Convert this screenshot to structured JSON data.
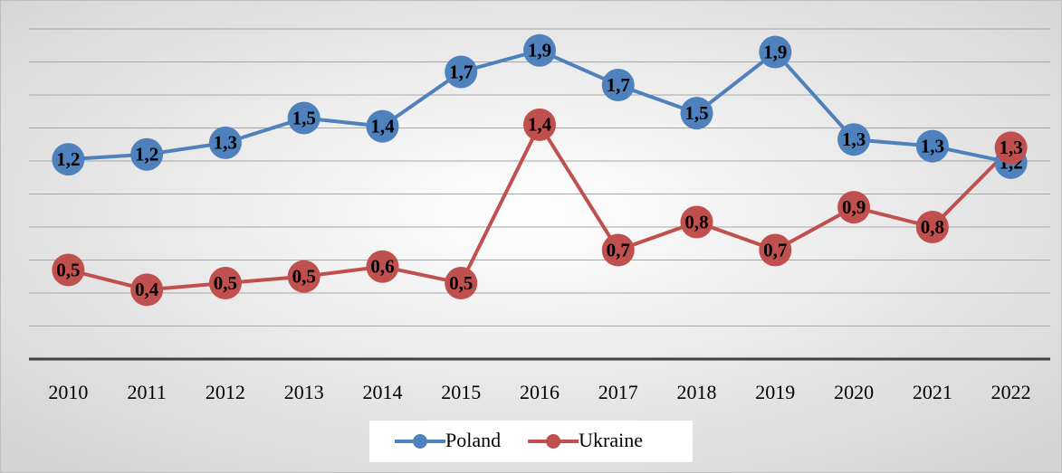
{
  "chart_data": {
    "type": "line",
    "categories": [
      "2010",
      "2011",
      "2012",
      "2013",
      "2014",
      "2015",
      "2016",
      "2017",
      "2018",
      "2019",
      "2020",
      "2021",
      "2022"
    ],
    "series": [
      {
        "name": "Poland",
        "color": "#4f81bd",
        "values": [
          1.21,
          1.24,
          1.31,
          1.46,
          1.41,
          1.74,
          1.87,
          1.66,
          1.49,
          1.86,
          1.33,
          1.29,
          1.19
        ],
        "value_labels": [
          "1,2",
          "1,2",
          "1,3",
          "1,5",
          "1,4",
          "1,7",
          "1,9",
          "1,7",
          "1,5",
          "1,9",
          "1,3",
          "1,3",
          "1,2"
        ]
      },
      {
        "name": "Ukraine",
        "color": "#c0504d",
        "values": [
          0.54,
          0.42,
          0.46,
          0.5,
          0.56,
          0.46,
          1.42,
          0.66,
          0.83,
          0.66,
          0.92,
          0.8,
          1.28
        ],
        "value_labels": [
          "0,5",
          "0,4",
          "0,5",
          "0,5",
          "0,6",
          "0,5",
          "1,4",
          "0,7",
          "0,8",
          "0,7",
          "0,9",
          "0,8",
          "1,3"
        ]
      }
    ],
    "ylim": [
      0,
      2
    ],
    "yticks": [
      0,
      0.2,
      0.4,
      0.6,
      0.8,
      1,
      1.2,
      1.4,
      1.6,
      1.8,
      2
    ],
    "grid": true,
    "legend": "bottom"
  }
}
